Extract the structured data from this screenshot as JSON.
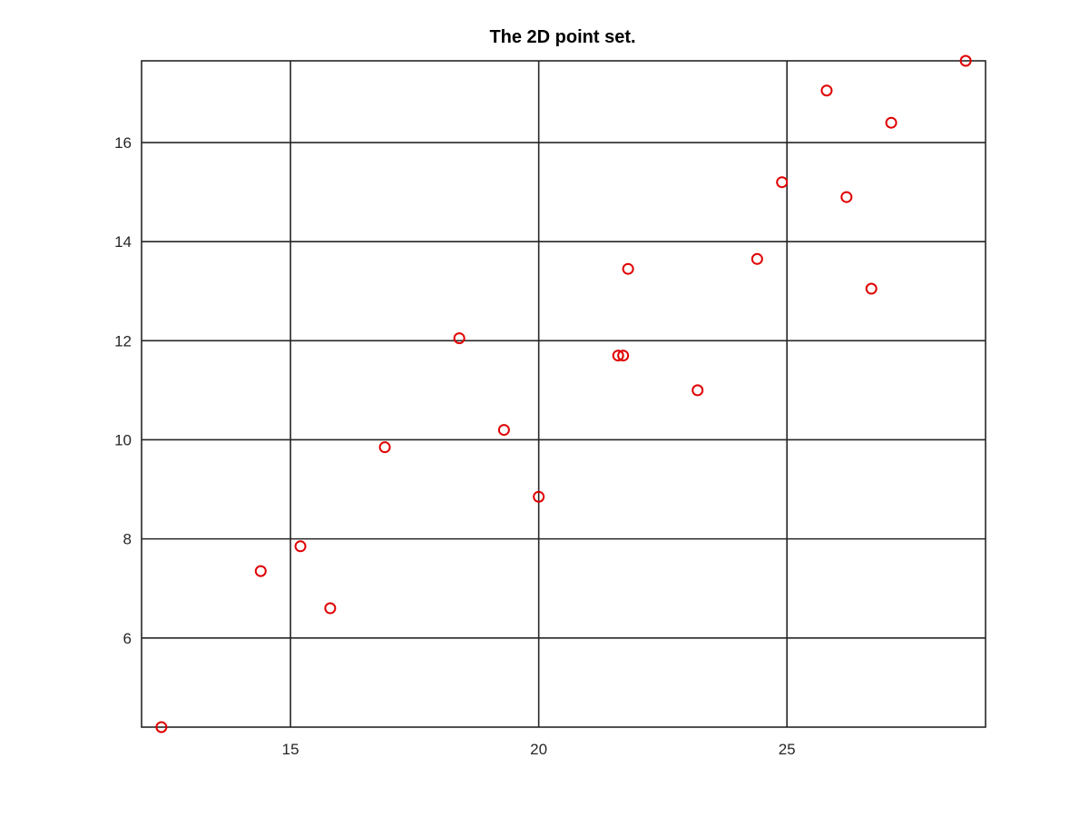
{
  "chart_data": {
    "type": "scatter",
    "title": "The 2D point set.",
    "xlabel": "",
    "ylabel": "",
    "xlim": [
      12,
      29
    ],
    "ylim": [
      4.2,
      17.65
    ],
    "xticks": [
      15,
      20,
      25
    ],
    "yticks": [
      6,
      8,
      10,
      12,
      14,
      16
    ],
    "grid": true,
    "marker": "circle",
    "marker_color": "#e00000",
    "series": [
      {
        "points": [
          {
            "x": 12.4,
            "y": 4.2
          },
          {
            "x": 14.4,
            "y": 7.35
          },
          {
            "x": 15.2,
            "y": 7.85
          },
          {
            "x": 15.8,
            "y": 6.6
          },
          {
            "x": 16.9,
            "y": 9.85
          },
          {
            "x": 18.4,
            "y": 12.05
          },
          {
            "x": 19.3,
            "y": 10.2
          },
          {
            "x": 20.0,
            "y": 8.85
          },
          {
            "x": 21.6,
            "y": 11.7
          },
          {
            "x": 21.7,
            "y": 11.7
          },
          {
            "x": 21.8,
            "y": 13.45
          },
          {
            "x": 23.2,
            "y": 11.0
          },
          {
            "x": 24.4,
            "y": 13.65
          },
          {
            "x": 24.9,
            "y": 15.2
          },
          {
            "x": 25.8,
            "y": 17.05
          },
          {
            "x": 26.2,
            "y": 14.9
          },
          {
            "x": 26.7,
            "y": 13.05
          },
          {
            "x": 27.1,
            "y": 16.4
          },
          {
            "x": 28.6,
            "y": 17.65
          }
        ]
      }
    ]
  }
}
